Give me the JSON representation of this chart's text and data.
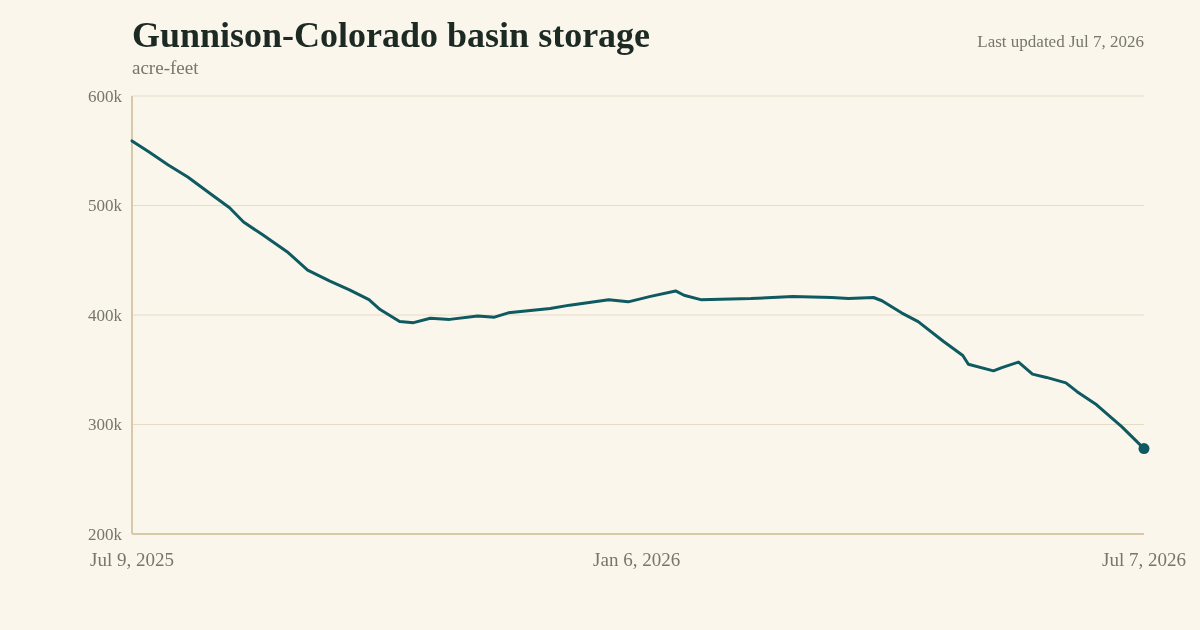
{
  "chart_data": {
    "type": "line",
    "title": "Gunnison-Colorado basin storage",
    "subtitle": "acre-feet",
    "annotations": [
      "Last updated Jul 7, 2026"
    ],
    "x": [
      "2025-07-09",
      "2025-07-15",
      "2025-07-22",
      "2025-07-29",
      "2025-08-06",
      "2025-08-13",
      "2025-08-18",
      "2025-08-25",
      "2025-09-03",
      "2025-09-10",
      "2025-09-18",
      "2025-09-25",
      "2025-10-02",
      "2025-10-06",
      "2025-10-13",
      "2025-10-18",
      "2025-10-24",
      "2025-10-31",
      "2025-11-10",
      "2025-11-16",
      "2025-11-21",
      "2025-12-06",
      "2025-12-13",
      "2025-12-27",
      "2026-01-03",
      "2026-01-11",
      "2026-01-20",
      "2026-01-23",
      "2026-01-29",
      "2026-02-16",
      "2026-03-03",
      "2026-03-17",
      "2026-03-23",
      "2026-04-01",
      "2026-04-04",
      "2026-04-11",
      "2026-04-17",
      "2026-04-26",
      "2026-05-03",
      "2026-05-05",
      "2026-05-14",
      "2026-05-17",
      "2026-05-23",
      "2026-05-28",
      "2026-06-02",
      "2026-06-09",
      "2026-06-13",
      "2026-06-20",
      "2026-06-29",
      "2026-07-07"
    ],
    "series": [
      {
        "color": "#0e5a60",
        "values": [
          559000,
          549000,
          537000,
          526000,
          511000,
          498000,
          485000,
          473000,
          457000,
          441000,
          431000,
          423000,
          414000,
          405000,
          394000,
          393000,
          397000,
          396000,
          399000,
          398000,
          402000,
          406000,
          409000,
          414000,
          412000,
          417000,
          422000,
          418000,
          414000,
          415000,
          417000,
          416000,
          415000,
          416000,
          413000,
          402000,
          394000,
          376000,
          363000,
          355000,
          349000,
          352000,
          357000,
          346000,
          343000,
          338000,
          330000,
          318000,
          298000,
          278000
        ]
      },
      {
        "type": "scatter",
        "color": "#0e5a60",
        "x": [
          "2026-07-07"
        ],
        "values": [
          278000
        ],
        "marker": "circle"
      }
    ],
    "xlim": [
      "2025-07-09",
      "2026-07-07"
    ],
    "xticks": [
      {
        "value": "2025-07-09",
        "label": "Jul 9, 2025"
      },
      {
        "value": "2026-01-06",
        "label": "Jan 6, 2026"
      },
      {
        "value": "2026-07-07",
        "label": "Jul 7, 2026"
      }
    ],
    "ylim": [
      200000,
      600000
    ],
    "yticks": [
      {
        "value": 200000,
        "label": "200k"
      },
      {
        "value": 300000,
        "label": "300k"
      },
      {
        "value": 400000,
        "label": "400k"
      },
      {
        "value": 500000,
        "label": "500k"
      },
      {
        "value": 600000,
        "label": "600k"
      }
    ],
    "grid": "y",
    "line_style": "solid"
  }
}
